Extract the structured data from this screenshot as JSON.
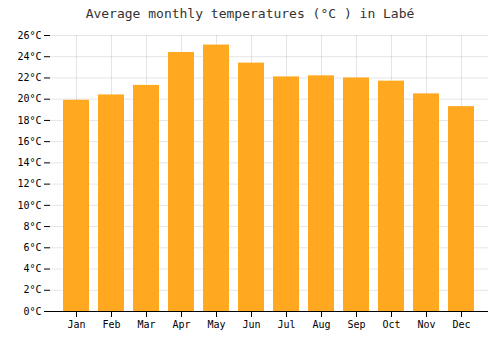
{
  "chart_data": {
    "type": "bar",
    "title": "Average monthly temperatures (°C ) in Labé",
    "categories": [
      "Jan",
      "Feb",
      "Mar",
      "Apr",
      "May",
      "Jun",
      "Jul",
      "Aug",
      "Sep",
      "Oct",
      "Nov",
      "Dec"
    ],
    "values": [
      19.9,
      20.4,
      21.3,
      24.4,
      25.1,
      23.4,
      22.1,
      22.2,
      22.0,
      21.7,
      20.5,
      19.3
    ],
    "color": "#FFA820",
    "ylim": [
      0,
      26
    ],
    "yticks": [
      {
        "value": 0,
        "label": "0°C"
      },
      {
        "value": 2,
        "label": "2°C"
      },
      {
        "value": 4,
        "label": "4°C"
      },
      {
        "value": 6,
        "label": "6°C"
      },
      {
        "value": 8,
        "label": "8°C"
      },
      {
        "value": 10,
        "label": "10°C"
      },
      {
        "value": 12,
        "label": "12°C"
      },
      {
        "value": 14,
        "label": "14°C"
      },
      {
        "value": 16,
        "label": "16°C"
      },
      {
        "value": 18,
        "label": "18°C"
      },
      {
        "value": 20,
        "label": "20°C"
      },
      {
        "value": 22,
        "label": "22°C"
      },
      {
        "value": 24,
        "label": "24°C"
      },
      {
        "value": 26,
        "label": "26°C"
      }
    ],
    "grid": true
  }
}
